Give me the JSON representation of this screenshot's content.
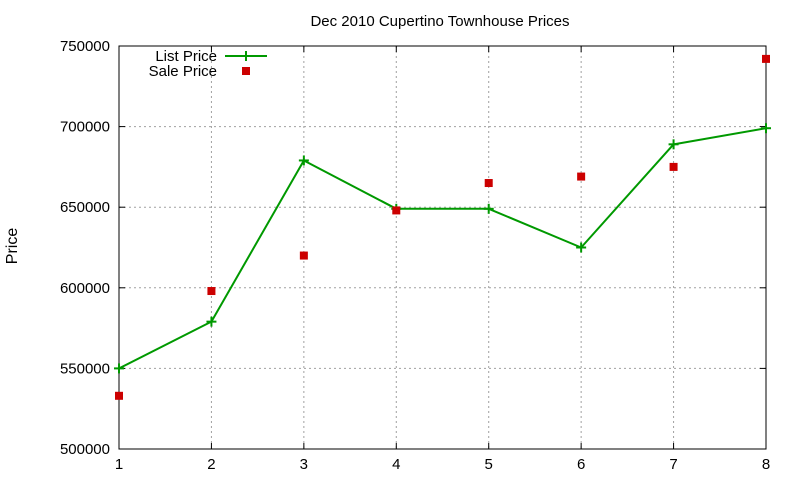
{
  "chart_data": {
    "type": "line",
    "title": "Dec 2010 Cupertino Townhouse Prices",
    "xlabel": "",
    "ylabel": "Price",
    "xlim": [
      1,
      8
    ],
    "ylim": [
      500000,
      750000
    ],
    "x_ticks": [
      1,
      2,
      3,
      4,
      5,
      6,
      7,
      8
    ],
    "y_ticks": [
      500000,
      550000,
      600000,
      650000,
      700000,
      750000
    ],
    "grid": true,
    "legend_position": "top-left",
    "series": [
      {
        "name": "List Price",
        "style": "line+cross",
        "color": "#009900",
        "x": [
          1,
          2,
          3,
          4,
          5,
          6,
          7,
          8
        ],
        "y": [
          550000,
          579000,
          679000,
          649000,
          649000,
          625000,
          689000,
          699000
        ]
      },
      {
        "name": "Sale Price",
        "style": "square-points",
        "color": "#cc0000",
        "x": [
          1,
          2,
          3,
          4,
          5,
          6,
          7,
          8
        ],
        "y": [
          533000,
          598000,
          620000,
          648000,
          665000,
          669000,
          675000,
          742000
        ]
      }
    ]
  }
}
